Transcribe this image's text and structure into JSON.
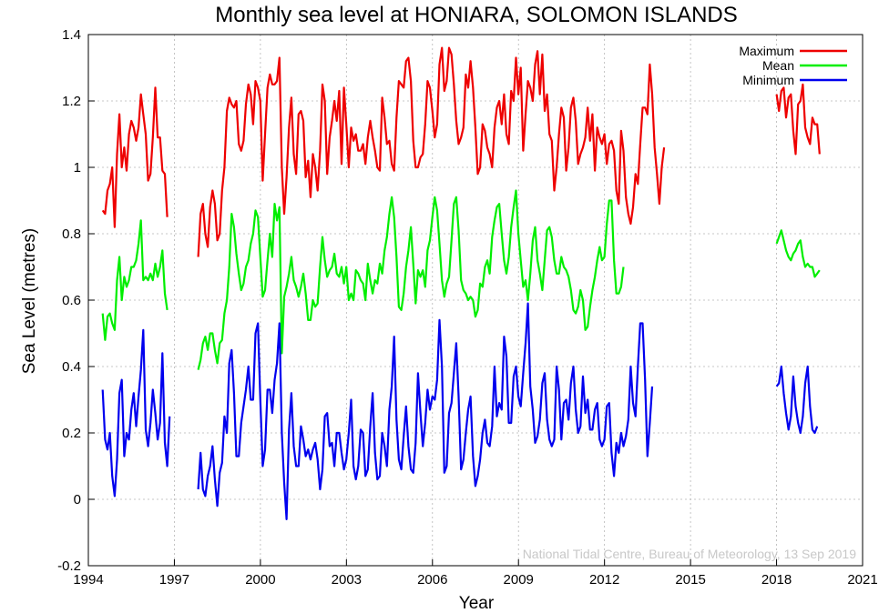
{
  "chart_data": {
    "type": "line",
    "title": "Monthly sea level at HONIARA, SOLOMON ISLANDS",
    "xlabel": "Year",
    "ylabel": "Sea Level (metres)",
    "xlim": [
      1994,
      2021
    ],
    "ylim": [
      -0.2,
      1.4
    ],
    "x_ticks": [
      "1994",
      "1997",
      "2000",
      "2003",
      "2006",
      "2009",
      "2012",
      "2015",
      "2018",
      "2021"
    ],
    "y_ticks": [
      "-0.2",
      "0",
      "0.2",
      "0.4",
      "0.6",
      "0.8",
      "1",
      "1.2",
      "1.4"
    ],
    "grid": true,
    "legend_position": "top-right",
    "credit": "National Tidal Centre, Bureau of Meteorology, 13 Sep 2019",
    "colors": {
      "Maximum": "#ee0000",
      "Mean": "#00ee00",
      "Minimum": "#0000ee"
    },
    "series": [
      {
        "name": "Maximum",
        "segments": [
          {
            "start": 1994.5,
            "values": [
              0.87,
              0.86,
              0.93,
              0.95,
              1.0,
              0.82,
              1.04,
              1.16,
              1.0,
              1.06,
              0.99,
              1.1,
              1.14,
              1.12,
              1.08,
              1.12,
              1.22,
              1.16,
              1.1,
              0.96,
              0.98,
              1.09,
              1.24,
              1.09,
              1.09,
              0.99,
              0.98,
              0.85
            ]
          },
          {
            "start": 1997.83,
            "values": [
              0.73,
              0.86,
              0.89,
              0.8,
              0.76,
              0.88,
              0.93,
              0.89,
              0.78,
              0.8,
              0.93,
              1.0,
              1.17,
              1.21,
              1.19,
              1.18,
              1.2,
              1.07,
              1.05,
              1.08,
              1.19,
              1.25,
              1.22,
              1.13,
              1.26,
              1.24,
              1.2,
              0.96,
              1.1,
              1.24,
              1.28,
              1.25,
              1.25,
              1.26,
              1.33,
              1.0,
              0.86,
              0.97,
              1.12,
              1.21,
              1.04,
              0.98,
              1.16,
              1.17,
              1.14,
              0.97,
              1.02,
              0.91,
              1.04,
              1.0,
              0.93,
              1.05,
              1.25,
              1.2,
              0.98,
              1.09,
              1.14,
              1.2,
              1.14,
              1.23,
              1.01,
              1.24,
              1.13,
              1.0,
              1.12,
              1.08,
              1.1,
              1.05,
              1.05,
              1.07,
              1.01,
              1.09,
              1.14,
              1.09,
              1.05,
              1.0,
              0.99,
              1.21,
              1.15,
              1.07,
              1.08,
              1.01,
              0.99,
              1.15,
              1.26,
              1.25,
              1.24,
              1.32,
              1.33,
              1.26,
              1.08,
              1.0,
              1.0,
              1.03,
              1.04,
              1.13,
              1.26,
              1.24,
              1.17,
              1.09,
              1.13,
              1.31,
              1.36,
              1.23,
              1.26,
              1.36,
              1.34,
              1.25,
              1.14,
              1.07,
              1.09,
              1.12,
              1.28,
              1.24,
              1.32,
              1.24,
              1.12,
              0.98,
              1.0,
              1.13,
              1.11,
              1.06,
              1.04,
              1.0,
              1.12,
              1.18,
              1.2,
              1.13,
              1.22,
              1.1,
              1.07,
              1.23,
              1.2,
              1.33,
              1.22,
              1.3,
              1.05,
              1.16,
              1.26,
              1.24,
              1.2,
              1.31,
              1.35,
              1.22,
              1.34,
              1.17,
              1.22,
              1.1,
              1.08,
              0.93,
              1.0,
              1.1,
              1.18,
              1.15,
              0.99,
              1.06,
              1.18,
              1.21,
              1.14,
              1.01,
              1.04,
              1.06,
              1.09,
              1.18,
              1.08,
              1.16,
              0.99,
              1.12,
              1.09,
              1.07,
              1.1,
              1.01,
              1.07,
              1.08,
              1.05,
              0.93,
              0.89,
              1.11,
              1.05,
              0.91,
              0.86,
              0.83,
              0.88,
              0.98,
              0.95,
              1.07,
              1.18,
              1.18,
              1.16,
              1.31,
              1.22,
              1.06,
              0.98,
              0.89,
              1.0,
              1.06
            ]
          },
          {
            "start": 2018.0,
            "values": [
              1.22,
              1.17,
              1.23,
              1.24,
              1.15,
              1.21,
              1.22,
              1.11,
              1.04,
              1.19,
              1.2,
              1.25,
              1.12,
              1.09,
              1.07,
              1.15,
              1.13,
              1.13,
              1.04
            ]
          }
        ]
      },
      {
        "name": "Mean",
        "segments": [
          {
            "start": 1994.5,
            "values": [
              0.56,
              0.48,
              0.55,
              0.56,
              0.53,
              0.51,
              0.66,
              0.73,
              0.6,
              0.67,
              0.64,
              0.66,
              0.7,
              0.7,
              0.72,
              0.77,
              0.84,
              0.66,
              0.67,
              0.66,
              0.68,
              0.66,
              0.71,
              0.67,
              0.7,
              0.75,
              0.62,
              0.57
            ]
          },
          {
            "start": 1997.83,
            "values": [
              0.39,
              0.42,
              0.47,
              0.49,
              0.45,
              0.5,
              0.5,
              0.45,
              0.41,
              0.47,
              0.48,
              0.56,
              0.6,
              0.7,
              0.86,
              0.82,
              0.74,
              0.68,
              0.63,
              0.65,
              0.7,
              0.72,
              0.77,
              0.8,
              0.87,
              0.85,
              0.73,
              0.61,
              0.63,
              0.72,
              0.8,
              0.73,
              0.89,
              0.84,
              0.88,
              0.44,
              0.61,
              0.64,
              0.68,
              0.73,
              0.66,
              0.64,
              0.61,
              0.64,
              0.68,
              0.62,
              0.54,
              0.54,
              0.6,
              0.58,
              0.59,
              0.7,
              0.79,
              0.72,
              0.67,
              0.69,
              0.7,
              0.74,
              0.68,
              0.67,
              0.7,
              0.65,
              0.7,
              0.6,
              0.62,
              0.6,
              0.69,
              0.68,
              0.66,
              0.65,
              0.6,
              0.71,
              0.66,
              0.62,
              0.66,
              0.65,
              0.71,
              0.68,
              0.75,
              0.79,
              0.86,
              0.91,
              0.85,
              0.73,
              0.58,
              0.57,
              0.62,
              0.7,
              0.75,
              0.82,
              0.71,
              0.59,
              0.69,
              0.67,
              0.69,
              0.64,
              0.75,
              0.78,
              0.85,
              0.91,
              0.87,
              0.77,
              0.66,
              0.61,
              0.65,
              0.67,
              0.78,
              0.89,
              0.91,
              0.81,
              0.66,
              0.63,
              0.62,
              0.6,
              0.61,
              0.6,
              0.55,
              0.57,
              0.65,
              0.64,
              0.7,
              0.72,
              0.68,
              0.79,
              0.84,
              0.88,
              0.89,
              0.8,
              0.72,
              0.68,
              0.73,
              0.82,
              0.88,
              0.93,
              0.8,
              0.72,
              0.64,
              0.66,
              0.6,
              0.68,
              0.78,
              0.82,
              0.72,
              0.68,
              0.63,
              0.72,
              0.81,
              0.82,
              0.79,
              0.72,
              0.68,
              0.68,
              0.73,
              0.7,
              0.69,
              0.67,
              0.63,
              0.57,
              0.56,
              0.58,
              0.63,
              0.6,
              0.51,
              0.52,
              0.58,
              0.63,
              0.67,
              0.72,
              0.76,
              0.72,
              0.73,
              0.83,
              0.9,
              0.9,
              0.72,
              0.62,
              0.62,
              0.64,
              0.7
            ]
          },
          {
            "start": 2018.0,
            "values": [
              0.77,
              0.79,
              0.81,
              0.78,
              0.75,
              0.73,
              0.72,
              0.74,
              0.75,
              0.77,
              0.78,
              0.73,
              0.7,
              0.71,
              0.7,
              0.7,
              0.67,
              0.68,
              0.69
            ]
          }
        ]
      },
      {
        "name": "Minimum",
        "segments": [
          {
            "start": 1994.5,
            "values": [
              0.33,
              0.18,
              0.15,
              0.2,
              0.07,
              0.01,
              0.12,
              0.32,
              0.36,
              0.13,
              0.2,
              0.18,
              0.27,
              0.32,
              0.22,
              0.31,
              0.39,
              0.51,
              0.21,
              0.16,
              0.23,
              0.33,
              0.26,
              0.18,
              0.23,
              0.44,
              0.17,
              0.1,
              0.25
            ]
          },
          {
            "start": 1997.83,
            "values": [
              0.03,
              0.14,
              0.03,
              0.01,
              0.07,
              0.1,
              0.16,
              0.06,
              -0.02,
              0.08,
              0.11,
              0.25,
              0.2,
              0.41,
              0.45,
              0.32,
              0.13,
              0.13,
              0.23,
              0.28,
              0.33,
              0.4,
              0.3,
              0.3,
              0.5,
              0.53,
              0.3,
              0.1,
              0.15,
              0.33,
              0.33,
              0.26,
              0.36,
              0.41,
              0.53,
              0.2,
              0.05,
              -0.06,
              0.21,
              0.32,
              0.16,
              0.1,
              0.1,
              0.22,
              0.18,
              0.13,
              0.15,
              0.12,
              0.15,
              0.17,
              0.12,
              0.03,
              0.09,
              0.25,
              0.26,
              0.16,
              0.17,
              0.1,
              0.2,
              0.2,
              0.14,
              0.09,
              0.12,
              0.2,
              0.3,
              0.1,
              0.06,
              0.1,
              0.21,
              0.2,
              0.07,
              0.09,
              0.22,
              0.32,
              0.14,
              0.06,
              0.07,
              0.2,
              0.16,
              0.1,
              0.27,
              0.34,
              0.49,
              0.24,
              0.12,
              0.09,
              0.19,
              0.28,
              0.16,
              0.09,
              0.08,
              0.17,
              0.38,
              0.26,
              0.16,
              0.23,
              0.33,
              0.27,
              0.31,
              0.3,
              0.36,
              0.54,
              0.4,
              0.08,
              0.1,
              0.26,
              0.29,
              0.38,
              0.47,
              0.31,
              0.09,
              0.12,
              0.2,
              0.27,
              0.31,
              0.13,
              0.04,
              0.07,
              0.12,
              0.2,
              0.24,
              0.17,
              0.16,
              0.22,
              0.4,
              0.25,
              0.29,
              0.27,
              0.49,
              0.43,
              0.23,
              0.23,
              0.37,
              0.4,
              0.31,
              0.28,
              0.38,
              0.47,
              0.59,
              0.34,
              0.27,
              0.17,
              0.19,
              0.24,
              0.35,
              0.38,
              0.24,
              0.18,
              0.16,
              0.18,
              0.4,
              0.33,
              0.18,
              0.29,
              0.3,
              0.24,
              0.35,
              0.4,
              0.27,
              0.2,
              0.22,
              0.37,
              0.26,
              0.3,
              0.21,
              0.21,
              0.27,
              0.29,
              0.18,
              0.16,
              0.18,
              0.28,
              0.29,
              0.14,
              0.07,
              0.17,
              0.14,
              0.2,
              0.16,
              0.19,
              0.24,
              0.4,
              0.29,
              0.25,
              0.4,
              0.53,
              0.53,
              0.36,
              0.13,
              0.23,
              0.34
            ]
          },
          {
            "start": 2018.0,
            "values": [
              0.34,
              0.35,
              0.4,
              0.32,
              0.26,
              0.21,
              0.25,
              0.37,
              0.28,
              0.23,
              0.2,
              0.25,
              0.35,
              0.4,
              0.28,
              0.21,
              0.2,
              0.22
            ]
          }
        ]
      }
    ]
  }
}
